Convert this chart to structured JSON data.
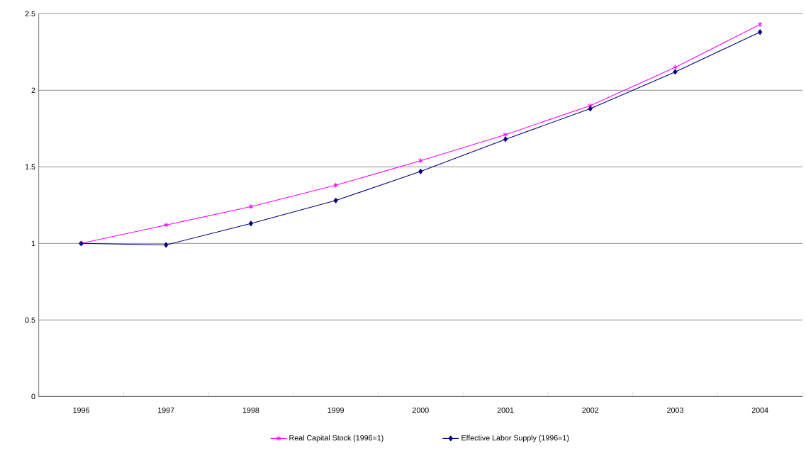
{
  "chart_data": {
    "type": "line",
    "categories": [
      "1996",
      "1997",
      "1998",
      "1999",
      "2000",
      "2001",
      "2002",
      "2003",
      "2004"
    ],
    "series": [
      {
        "name": "Real Capital Stock (1996=1)",
        "color": "#ff00ff",
        "marker": "cross",
        "values": [
          1.0,
          1.12,
          1.24,
          1.38,
          1.54,
          1.71,
          1.9,
          2.15,
          2.43
        ]
      },
      {
        "name": "Effective Labor Supply (1996=1)",
        "color": "#000080",
        "marker": "diamond",
        "values": [
          1.0,
          0.99,
          1.13,
          1.28,
          1.47,
          1.68,
          1.88,
          2.12,
          2.38
        ]
      }
    ],
    "ylim": [
      0,
      2.5
    ],
    "yticks": [
      0,
      0.5,
      1,
      1.5,
      2,
      2.5
    ],
    "grid": "y",
    "legend": "bottom",
    "line_style": "solid"
  }
}
